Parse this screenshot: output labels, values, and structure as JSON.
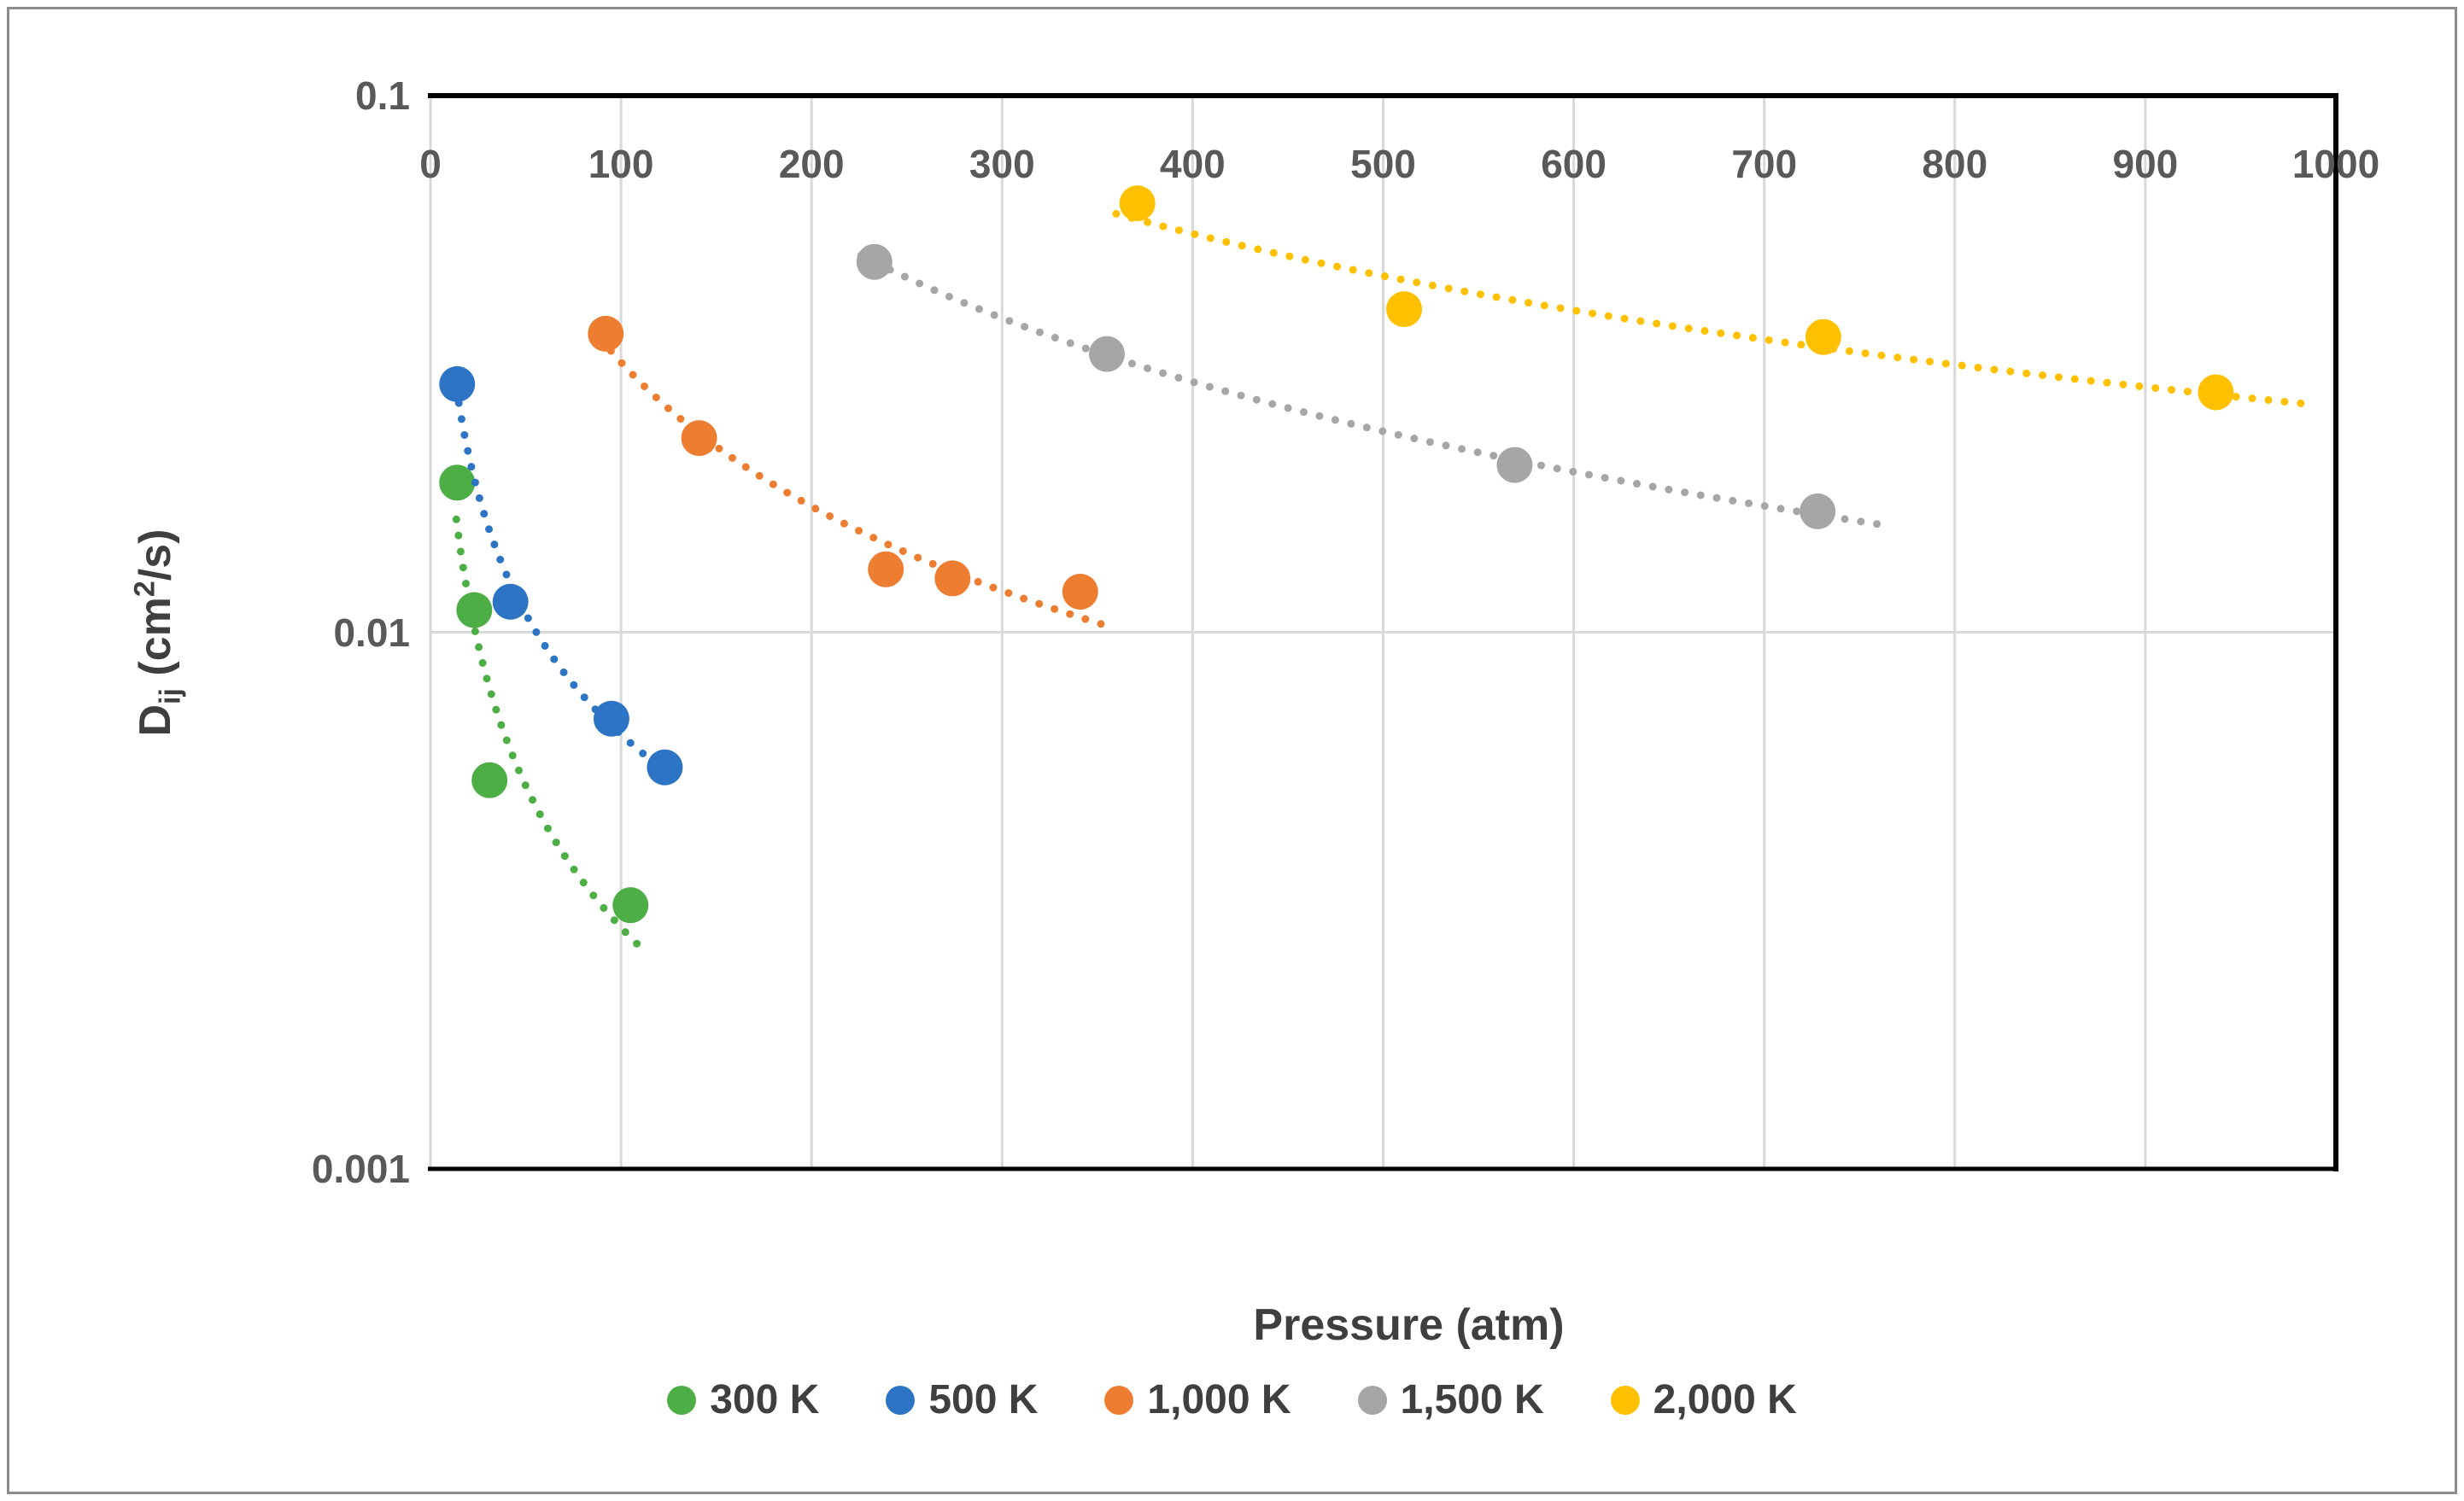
{
  "figure": {
    "background": "#ffffff",
    "border_color": "#8c8c8c",
    "tick_color": "#595959",
    "title_color": "#3f3f3f",
    "gridline_color": "#d9d9d9",
    "axis_line_color": "#000000"
  },
  "chart_data": {
    "type": "scatter",
    "title": "",
    "xlabel": "Pressure (atm)",
    "ylabel": "Dij (cm2/s)",
    "ylabel_parts": {
      "d": "D",
      "sub": "ij",
      "mid": " (cm",
      "sup": "2",
      "end": "/s)"
    },
    "y_scale": "log",
    "xlim": [
      0,
      1000
    ],
    "ylim": [
      0.001,
      0.1
    ],
    "x_ticks": [
      "0",
      "100",
      "200",
      "300",
      "400",
      "500",
      "600",
      "700",
      "800",
      "900",
      "1000"
    ],
    "x_tick_values": [
      0,
      100,
      200,
      300,
      400,
      500,
      600,
      700,
      800,
      900,
      1000
    ],
    "y_ticks": [
      "0.1",
      "0.01",
      "0.001"
    ],
    "y_tick_values": [
      0.1,
      0.01,
      0.001
    ],
    "grid": true,
    "legend_position": "bottom",
    "trendline_style": "dotted-power-fit",
    "series": [
      {
        "name": "300 K",
        "color": "#4cae45",
        "points": [
          [
            14,
            0.019
          ],
          [
            23,
            0.011
          ],
          [
            31,
            0.0053
          ],
          [
            105,
            0.0031
          ]
        ]
      },
      {
        "name": "500 K",
        "color": "#2d74c4",
        "points": [
          [
            14,
            0.029
          ],
          [
            42,
            0.0114
          ],
          [
            95,
            0.0069
          ],
          [
            123,
            0.0056
          ]
        ]
      },
      {
        "name": "1,000 K",
        "color": "#ed7d31",
        "points": [
          [
            92,
            0.036
          ],
          [
            141,
            0.023
          ],
          [
            239,
            0.0131
          ],
          [
            274,
            0.0126
          ],
          [
            341,
            0.0119
          ]
        ]
      },
      {
        "name": "1,500 K",
        "color": "#a6a6a6",
        "points": [
          [
            233,
            0.049
          ],
          [
            355,
            0.033
          ],
          [
            569,
            0.0205
          ],
          [
            728,
            0.0168
          ]
        ]
      },
      {
        "name": "2,000 K",
        "color": "#ffc000",
        "points": [
          [
            371,
            0.063
          ],
          [
            511,
            0.04
          ],
          [
            731,
            0.0355
          ],
          [
            937,
            0.028
          ]
        ]
      }
    ]
  }
}
